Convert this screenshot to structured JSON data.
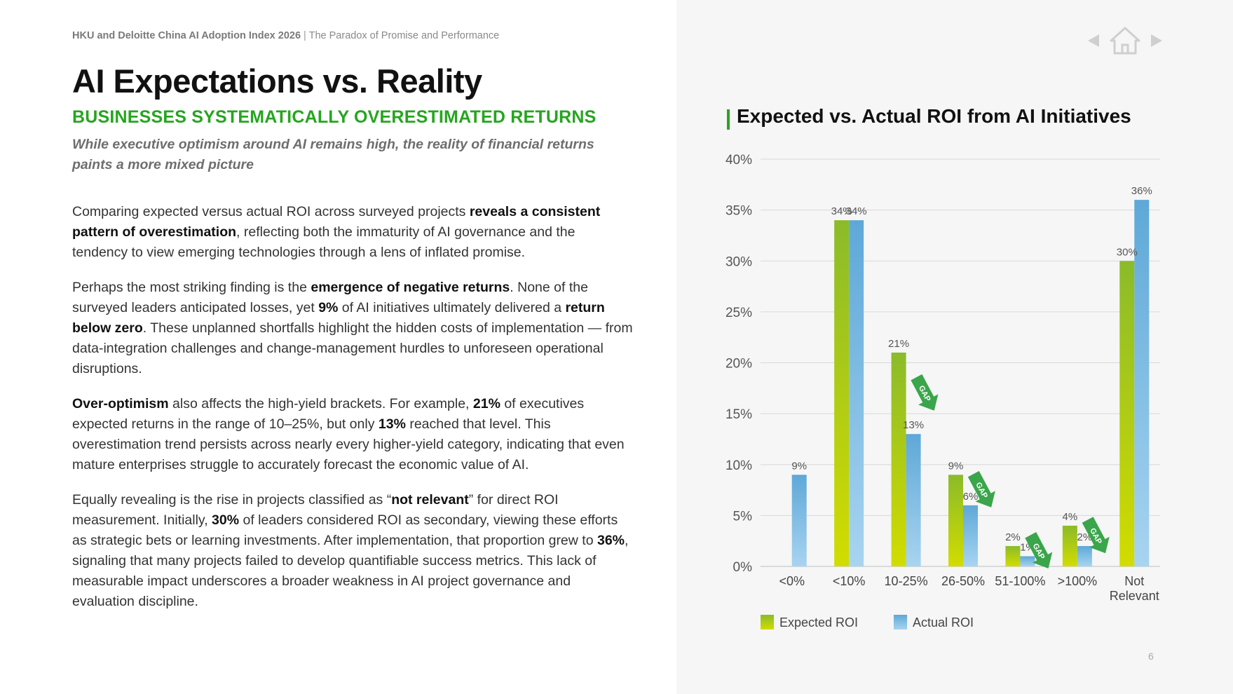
{
  "header": {
    "source": "HKU and Deloitte China AI Adoption Index 2026",
    "separator": "|",
    "report": "The Paradox of Promise and Performance"
  },
  "page": {
    "title": "AI Expectations vs. Reality",
    "subtitle": "BUSINESSES SYSTEMATICALLY OVERESTIMATED RETURNS",
    "lead": "While executive optimism around AI remains high, the reality of financial returns paints a more mixed picture",
    "paragraphs": {
      "p1a": "Comparing expected versus actual ROI across surveyed projects ",
      "p1b": "reveals a consistent pattern of overestimation",
      "p1c": ", reflecting both the immaturity of AI governance and the tendency to view emerging technologies through a lens of inflated promise.",
      "p2a": "Perhaps the most striking finding is the ",
      "p2b": "emergence of negative returns",
      "p2c": ". None of the surveyed leaders anticipated losses, yet ",
      "p2d": "9%",
      "p2e": " of AI initiatives ultimately delivered a ",
      "p2f": "return below zero",
      "p2g": ". These unplanned shortfalls highlight the hidden costs of implementation — from data-integration challenges and change-management hurdles to unforeseen operational disruptions.",
      "p3a": "Over-optimism",
      "p3b": " also affects the high-yield brackets. For example, ",
      "p3c": "21%",
      "p3d": " of executives expected returns in the range of 10–25%, but only ",
      "p3e": "13%",
      "p3f": " reached that level. This overestimation trend persists across nearly every higher-yield category, indicating that even mature enterprises struggle to accurately forecast the economic value of AI.",
      "p4a": "Equally revealing is the rise in projects classified as “",
      "p4b": "not relevant",
      "p4c": "” for direct ROI measurement. Initially, ",
      "p4d": "30%",
      "p4e": " of leaders considered ROI as secondary, viewing these efforts as strategic bets or learning investments. After implementation, that proportion grew to ",
      "p4f": "36%",
      "p4g": ", signaling that many projects failed to develop quantifiable success metrics. This lack of measurable impact underscores a broader weakness in AI project governance and evaluation discipline."
    },
    "page_number": "6"
  },
  "nav": {
    "prev_icon": "triangle-left-icon",
    "home_icon": "home-icon",
    "next_icon": "triangle-right-icon"
  },
  "colors": {
    "accent": "#26a51f",
    "expected_top": "#8bbb2a",
    "expected_bottom": "#d2dc00",
    "actual_top": "#5ea8d8",
    "actual_bottom": "#a8d4f0",
    "gap_arrow": "#3aa54a"
  },
  "chart_data": {
    "type": "bar",
    "title": "Expected vs. Actual ROI from AI Initiatives",
    "categories": [
      "<0%",
      "<10%",
      "10-25%",
      "26-50%",
      "51-100%",
      ">100%",
      "Not Relevant"
    ],
    "series": [
      {
        "name": "Expected ROI",
        "values": [
          0,
          34,
          21,
          9,
          2,
          4,
          30
        ],
        "labels": [
          "",
          "34%",
          "21%",
          "9%",
          "2%",
          "4%",
          "30%"
        ]
      },
      {
        "name": "Actual ROI",
        "values": [
          9,
          34,
          13,
          6,
          1,
          2,
          36
        ],
        "labels": [
          "9%",
          "34%",
          "13%",
          "6%",
          "1%",
          "2%",
          "36%"
        ]
      }
    ],
    "ylim": [
      0,
      40
    ],
    "yticks": [
      "0%",
      "5%",
      "10%",
      "15%",
      "20%",
      "25%",
      "30%",
      "35%",
      "40%"
    ],
    "gap_label": "GAP",
    "gap_categories": [
      "10-25%",
      "26-50%",
      "51-100%",
      ">100%"
    ],
    "legend_position": "bottom-left",
    "grid": true
  }
}
